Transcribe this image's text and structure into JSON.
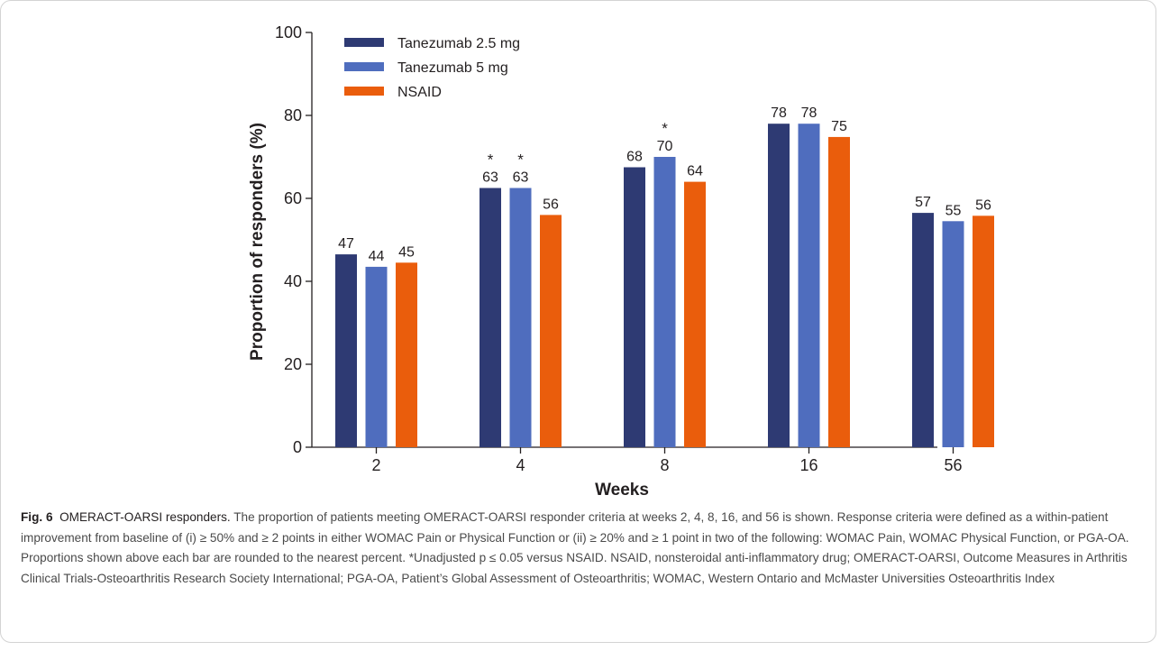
{
  "chart_data": {
    "type": "bar",
    "categories": [
      "2",
      "4",
      "8",
      "16",
      "56"
    ],
    "series": [
      {
        "name": "Tanezumab 2.5 mg",
        "color": "#2e3a73",
        "values": [
          47,
          63,
          68,
          78,
          57
        ],
        "display_values": [
          46.5,
          62.5,
          67.5,
          78,
          56.5
        ],
        "significant": [
          false,
          true,
          false,
          false,
          false
        ]
      },
      {
        "name": "Tanezumab 5 mg",
        "color": "#4f6dbe",
        "values": [
          44,
          63,
          70,
          78,
          55
        ],
        "display_values": [
          43.5,
          62.5,
          70,
          78,
          54.5
        ],
        "significant": [
          false,
          true,
          true,
          false,
          false
        ]
      },
      {
        "name": "NSAID",
        "color": "#ea5d0c",
        "values": [
          45,
          56,
          64,
          75,
          56
        ],
        "display_values": [
          44.5,
          56,
          64,
          74.8,
          55.8
        ],
        "significant": [
          false,
          false,
          false,
          false,
          false
        ]
      }
    ],
    "xlabel": "Weeks",
    "ylabel": "Proportion of responders (%)",
    "ylim": [
      0,
      100
    ],
    "yticks": [
      "0",
      "20",
      "40",
      "60",
      "80",
      "100"
    ],
    "legend": "top-left",
    "significance_marker": "*",
    "grid": false
  },
  "caption": {
    "label": "Fig. 6",
    "title": "OMERACT-OARSI responders.",
    "body": "The proportion of patients meeting OMERACT-OARSI responder criteria at weeks 2, 4, 8, 16, and 56 is shown. Response criteria were defined as a within-patient improvement from baseline of (i) ≥ 50% and ≥ 2 points in either WOMAC Pain or Physical Function or (ii) ≥ 20% and ≥ 1 point in two of the following: WOMAC Pain, WOMAC Physical Function, or PGA-OA. Proportions shown above each bar are rounded to the nearest percent. *Unadjusted p ≤ 0.05 versus NSAID. NSAID, nonsteroidal anti-inflammatory drug; OMERACT-OARSI, Outcome Measures in Arthritis Clinical Trials-Osteoarthritis Research Society International; PGA-OA, Patient’s Global Assessment of Osteoarthritis; WOMAC, Western Ontario and McMaster Universities Osteoarthritis Index"
  }
}
